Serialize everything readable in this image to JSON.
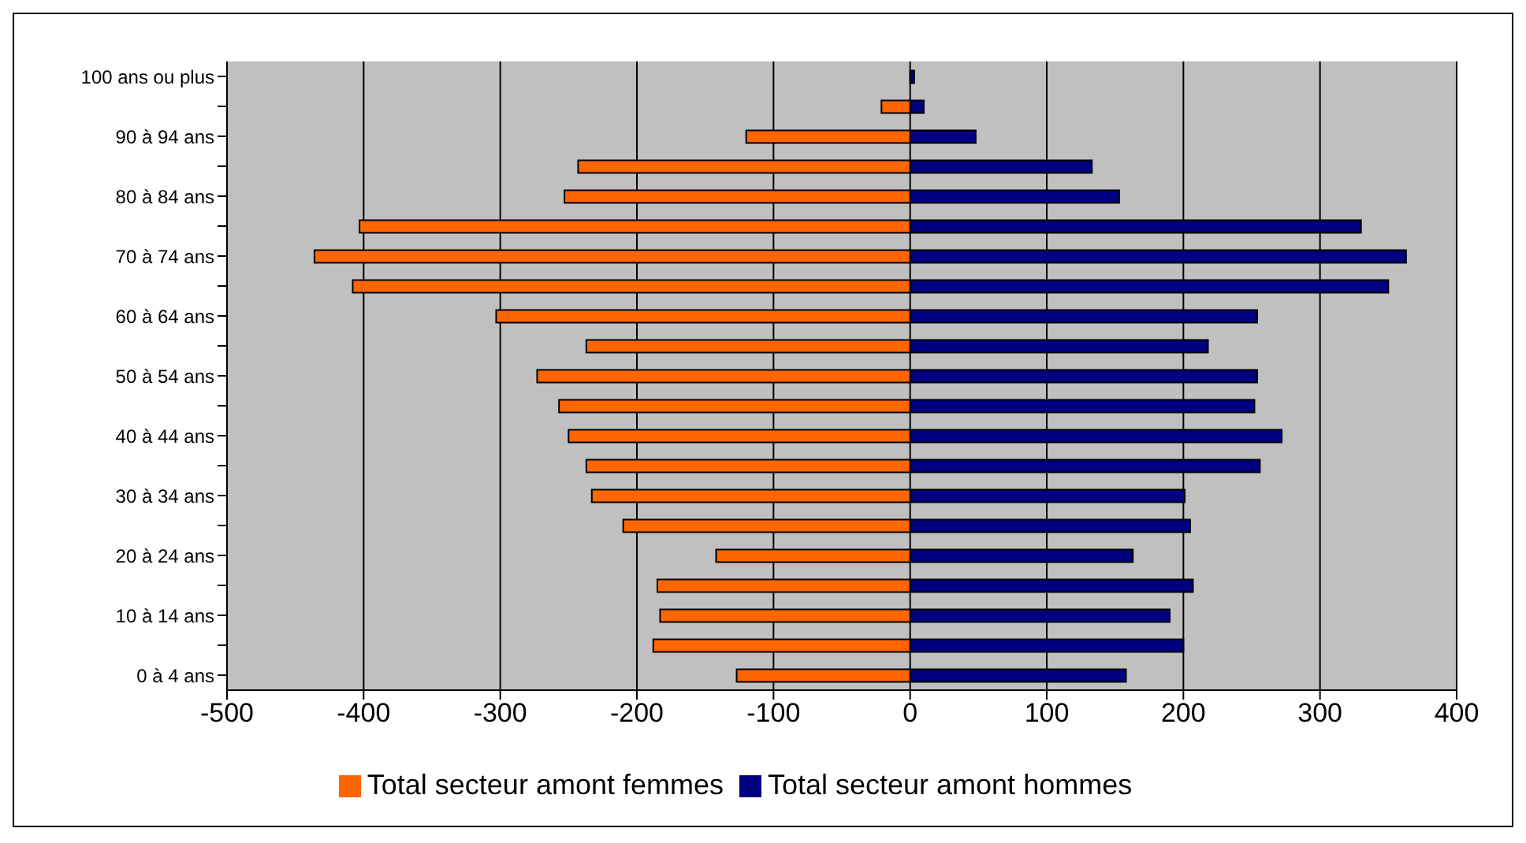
{
  "chart_data": {
    "type": "bar",
    "orientation": "horizontal",
    "stacked": true,
    "categories": [
      "100 ans ou plus",
      null,
      "90 à 94 ans",
      null,
      "80 à 84 ans",
      null,
      "70 à 74 ans",
      null,
      "60 à 64 ans",
      null,
      "50 à 54 ans",
      null,
      "40 à 44 ans",
      null,
      "30 à 34 ans",
      null,
      "20 à 24 ans",
      null,
      "10 à 14 ans",
      null,
      "0 à 4 ans"
    ],
    "series": [
      {
        "name": "Total secteur amont hommes",
        "color": "#000080",
        "values": [
          3,
          10,
          48,
          133,
          153,
          330,
          363,
          350,
          254,
          218,
          254,
          252,
          272,
          256,
          201,
          205,
          163,
          207,
          190,
          200,
          158
        ]
      },
      {
        "name": "Total secteur amont femmes",
        "color": "#ff6600",
        "values": [
          0,
          -21,
          -120,
          -243,
          -253,
          -403,
          -436,
          -408,
          -303,
          -237,
          -273,
          -257,
          -250,
          -237,
          -233,
          -210,
          -142,
          -185,
          -183,
          -188,
          -127
        ]
      }
    ],
    "xlim": [
      -500,
      400
    ],
    "xticks": [
      -500,
      -400,
      -300,
      -200,
      -100,
      0,
      100,
      200,
      300,
      400
    ],
    "grid": "x",
    "legend": "bottom"
  }
}
